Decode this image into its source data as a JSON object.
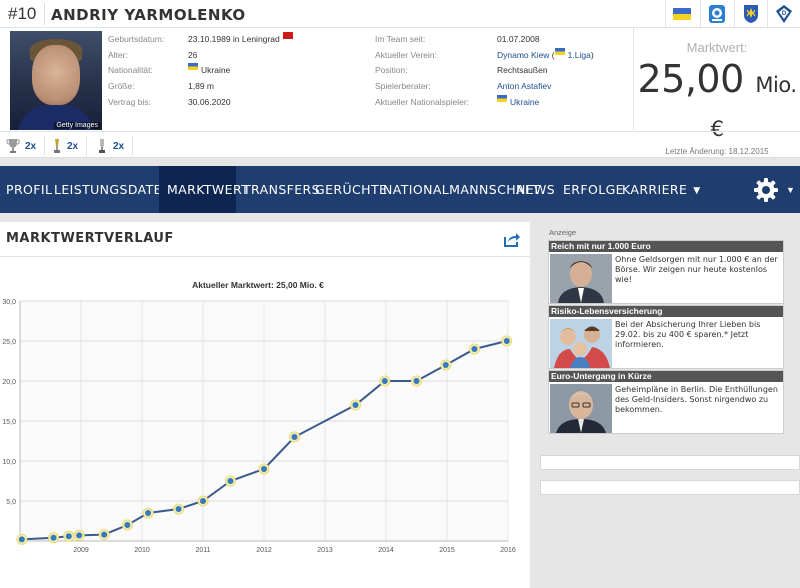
{
  "header": {
    "shirt_number": "#10",
    "player_name": "ANDRIY YARMOLENKO",
    "photo_credit": "Getty Images",
    "badges": [
      "ukraine-flag-icon",
      "league-logo-icon",
      "ukraine-federation-icon",
      "dynamo-kiev-icon"
    ]
  },
  "info_left": [
    {
      "label": "Geburtsdatum:",
      "value": "23.10.1989 in Leningrad"
    },
    {
      "label": "Alter:",
      "value": "26"
    },
    {
      "label": "Nationalität:",
      "value": "Ukraine"
    },
    {
      "label": "Größe:",
      "value": "1,89 m"
    },
    {
      "label": "Vertrag bis:",
      "value": "30.06.2020"
    }
  ],
  "info_right": [
    {
      "label": "Im Team seit:",
      "value": "01.07.2008"
    },
    {
      "label": "Aktueller Verein:",
      "value": "Dynamo Kiew",
      "extra": "1.Liga"
    },
    {
      "label": "Position:",
      "value": "Rechtsaußen"
    },
    {
      "label": "Spielerberater:",
      "value": "Anton Astafiev"
    },
    {
      "label": "Aktueller Nationalspieler:",
      "value": "Ukraine"
    }
  ],
  "market_value": {
    "label": "Marktwert:",
    "value": "25,00",
    "unit": "Mio. €",
    "updated": "Letzte Änderung: 18.12.2015"
  },
  "achievements": [
    {
      "icon": "trophy-icon",
      "count": "2x"
    },
    {
      "icon": "cup-icon",
      "count": "2x"
    },
    {
      "icon": "super-cup-icon",
      "count": "2x"
    }
  ],
  "nav": {
    "items": [
      {
        "label": "Profil"
      },
      {
        "label": "Leistungsdaten"
      },
      {
        "label": "Marktwert"
      },
      {
        "label": "Transfers"
      },
      {
        "label": "Gerüchte"
      },
      {
        "label": "Nationalmannschaft"
      },
      {
        "label": "News"
      },
      {
        "label": "Erfolge"
      },
      {
        "label": "Karriere"
      }
    ],
    "active": "Marktwert"
  },
  "panel": {
    "title": "Marktwertverlauf"
  },
  "chart_data": {
    "type": "line",
    "title": "Aktueller Marktwert: 25,00 Mio. €",
    "xlabel": "",
    "ylabel": "",
    "ylim": [
      0,
      30
    ],
    "yticks": [
      "5,0",
      "10,0",
      "15,0",
      "20,0",
      "25,0",
      "30,0"
    ],
    "xticks": [
      "2009",
      "2010",
      "2011",
      "2012",
      "2013",
      "2014",
      "2015",
      "2016"
    ],
    "xlim": [
      2008.0,
      2016.0
    ],
    "grid": true,
    "series": [
      {
        "points": [
          [
            2008.03,
            0.2
          ],
          [
            2008.55,
            0.4
          ],
          [
            2008.8,
            0.6
          ],
          [
            2008.97,
            0.7
          ],
          [
            2009.38,
            0.8
          ],
          [
            2009.76,
            2.0
          ],
          [
            2010.1,
            3.5
          ],
          [
            2010.6,
            4.0
          ],
          [
            2011.0,
            5.0
          ],
          [
            2011.45,
            7.5
          ],
          [
            2012.0,
            9.0
          ],
          [
            2012.5,
            13.0
          ],
          [
            2013.5,
            17.0
          ],
          [
            2013.98,
            20.0
          ],
          [
            2014.5,
            20.0
          ],
          [
            2014.98,
            22.0
          ],
          [
            2015.45,
            24.0
          ],
          [
            2015.98,
            25.0
          ]
        ]
      }
    ]
  },
  "ads": {
    "label": "Anzeige",
    "items": [
      {
        "title": "Reich mit nur 1.000 Euro",
        "text": "Ohne Geldsorgen mit nur 1.000 € an der Börse. Wir zeigen nur heute kostenlos wie!"
      },
      {
        "title": "Risiko-Lebensversicherung",
        "text": "Bei der Absicherung Ihrer Lieben bis 29.02. bis zu 400 € sparen.* Jetzt informieren."
      },
      {
        "title": "Euro-Untergang in Kürze",
        "text": "Geheimpläne in Berlin. Die Enthüllungen des Geld-Insiders. Sonst nirgendwo zu bekommen."
      }
    ]
  }
}
